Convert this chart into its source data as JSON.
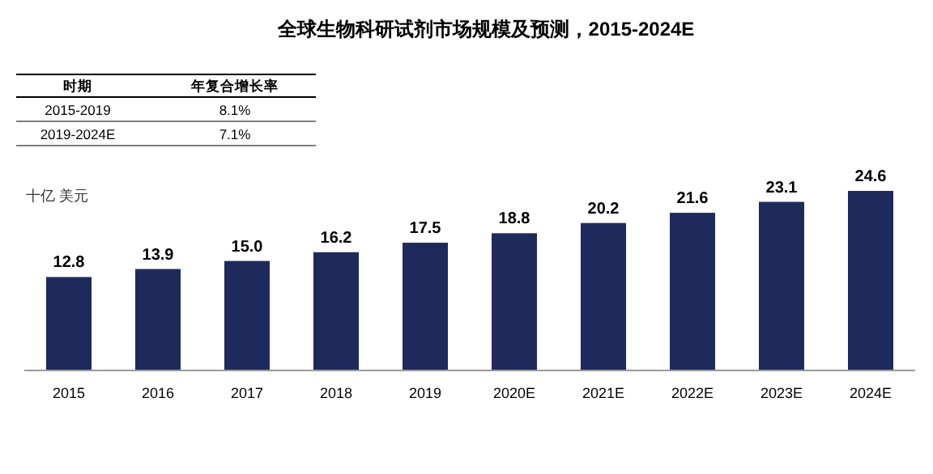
{
  "chart_data": {
    "type": "bar",
    "title": "全球生物科研试剂市场规模及预测，2015-2024E",
    "ylabel": "十亿 美元",
    "categories": [
      "2015",
      "2016",
      "2017",
      "2018",
      "2019",
      "2020E",
      "2021E",
      "2022E",
      "2023E",
      "2024E"
    ],
    "values": [
      12.8,
      13.9,
      15.0,
      16.2,
      17.5,
      18.8,
      20.2,
      21.6,
      23.1,
      24.6
    ],
    "color": "#1f2a5c",
    "value_labels": [
      "12.8",
      "13.9",
      "15.0",
      "16.2",
      "17.5",
      "18.8",
      "20.2",
      "21.6",
      "23.1",
      "24.6"
    ],
    "annotations": [
      "时期",
      "年复合增长率",
      "2015-2019",
      "8.1%",
      "2019-2024E",
      "7.1%"
    ]
  }
}
